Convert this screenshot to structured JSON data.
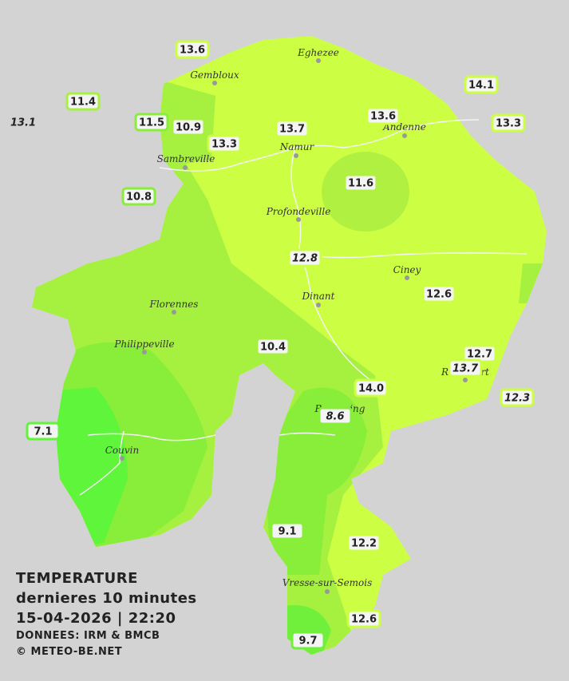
{
  "cities": [
    "Eghezee",
    "Gembloux",
    "Andenne",
    "Namur",
    "Sambreville",
    "Profondeville",
    "Ciney",
    "Dinant",
    "Florennes",
    "Philippeville",
    "Beauraing",
    "Rochefort",
    "Couvin",
    "Vresse-sur-Semois"
  ],
  "stations": [
    {
      "label": "13.6",
      "italic": false
    },
    {
      "label": "11.4",
      "italic": false
    },
    {
      "label": "13.1",
      "italic": true
    },
    {
      "label": "11.5",
      "italic": false
    },
    {
      "label": "10.9",
      "italic": false
    },
    {
      "label": "13.3",
      "italic": false
    },
    {
      "label": "13.7",
      "italic": false
    },
    {
      "label": "13.6",
      "italic": false
    },
    {
      "label": "14.1",
      "italic": false
    },
    {
      "label": "13.3",
      "italic": false
    },
    {
      "label": "10.8",
      "italic": false
    },
    {
      "label": "11.6",
      "italic": false
    },
    {
      "label": "12.8",
      "italic": true
    },
    {
      "label": "12.6",
      "italic": false
    },
    {
      "label": "10.4",
      "italic": false
    },
    {
      "label": "12.7",
      "italic": false
    },
    {
      "label": "13.7",
      "italic": true
    },
    {
      "label": "14.0",
      "italic": false
    },
    {
      "label": "12.3",
      "italic": true
    },
    {
      "label": "8.6",
      "italic": true
    },
    {
      "label": "7.1",
      "italic": false
    },
    {
      "label": "9.1",
      "italic": false
    },
    {
      "label": "12.2",
      "italic": false
    },
    {
      "label": "12.6",
      "italic": false
    },
    {
      "label": "9.7",
      "italic": false
    }
  ],
  "legend": {
    "title": "TEMPERATURE",
    "subtitle": "dernieres 10 minutes",
    "datetime": "15-04-2026  |  22:20",
    "source": "DONNEES: IRM & BMCB",
    "copyright": "© METEO-BE.NET"
  }
}
